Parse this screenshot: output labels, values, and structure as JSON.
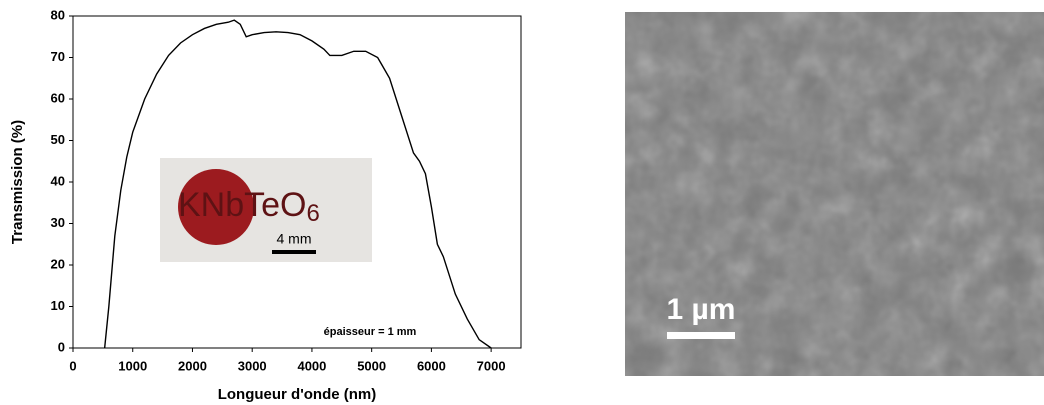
{
  "chart_data": {
    "type": "line",
    "xlabel": "Longueur d'onde (nm)",
    "ylabel": "Transmission (%)",
    "annotation": "épaisseur = 1 mm",
    "inset": {
      "formula_main": "KNbTeO",
      "formula_sub": "6",
      "scale_bar": "4 mm"
    },
    "x": [
      530,
      600,
      700,
      800,
      900,
      1000,
      1200,
      1400,
      1600,
      1800,
      2000,
      2200,
      2400,
      2600,
      2700,
      2800,
      2900,
      3000,
      3200,
      3400,
      3600,
      3800,
      4000,
      4200,
      4300,
      4500,
      4700,
      4900,
      5100,
      5300,
      5500,
      5700,
      5800,
      5900,
      6000,
      6100,
      6200,
      6400,
      6600,
      6800,
      7000
    ],
    "series": [
      {
        "color": "#000000",
        "values": [
          0,
          10,
          27,
          38,
          46,
          52,
          60,
          66,
          70.5,
          73.5,
          75.5,
          77,
          78,
          78.5,
          79,
          78,
          75,
          75.5,
          76,
          76.2,
          76,
          75.5,
          74,
          72,
          70.5,
          70.5,
          71.5,
          71.5,
          70,
          65,
          56,
          47,
          45,
          42,
          34,
          25,
          22,
          13,
          7,
          2,
          0
        ]
      }
    ],
    "xlim": [
      0,
      7500
    ],
    "ylim": [
      0,
      80
    ],
    "xticks": [
      0,
      1000,
      2000,
      3000,
      4000,
      5000,
      6000,
      7000
    ],
    "yticks": [
      0,
      10,
      20,
      30,
      40,
      50,
      60,
      70,
      80
    ]
  },
  "image": {
    "scale_label": "1 µm"
  }
}
